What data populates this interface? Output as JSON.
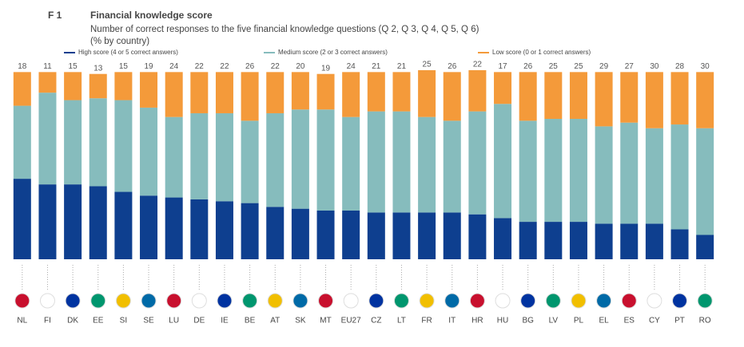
{
  "chart_data": {
    "type": "bar",
    "stacked": true,
    "figure_label": "F 1",
    "title": "Financial knowledge score",
    "subtitle": [
      "Number of correct responses to the five financial knowledge questions (Q 2, Q 3, Q 4, Q 5, Q 6)",
      "(% by country)"
    ],
    "categories": [
      "NL",
      "FI",
      "DK",
      "EE",
      "SI",
      "SE",
      "LU",
      "DE",
      "IE",
      "BE",
      "AT",
      "SK",
      "MT",
      "EU27",
      "CZ",
      "LT",
      "FR",
      "IT",
      "HR",
      "HU",
      "BG",
      "LV",
      "PL",
      "EL",
      "ES",
      "CY",
      "PT",
      "RO"
    ],
    "series": [
      {
        "name": "High score (4 or 5 correct answers)",
        "color": "#0e3f8f",
        "values": [
          43,
          40,
          40,
          39,
          36,
          34,
          33,
          32,
          31,
          30,
          28,
          27,
          26,
          26,
          25,
          25,
          25,
          25,
          24,
          22,
          20,
          20,
          20,
          19,
          19,
          19,
          16,
          13
        ]
      },
      {
        "name": "Medium score (2 or 3 correct answers)",
        "color": "#86bcbd",
        "values": [
          39,
          49,
          45,
          47,
          49,
          47,
          43,
          46,
          47,
          44,
          50,
          53,
          54,
          50,
          54,
          54,
          51,
          49,
          55,
          61,
          54,
          55,
          55,
          52,
          54,
          51,
          56,
          57
        ]
      },
      {
        "name": "Low score (0 or 1 correct answers)",
        "color": "#f49a3a",
        "values": [
          18,
          11,
          15,
          13,
          15,
          19,
          24,
          22,
          22,
          26,
          22,
          20,
          19,
          24,
          21,
          21,
          25,
          26,
          22,
          17,
          26,
          25,
          25,
          29,
          27,
          30,
          28,
          30
        ]
      }
    ]
  }
}
